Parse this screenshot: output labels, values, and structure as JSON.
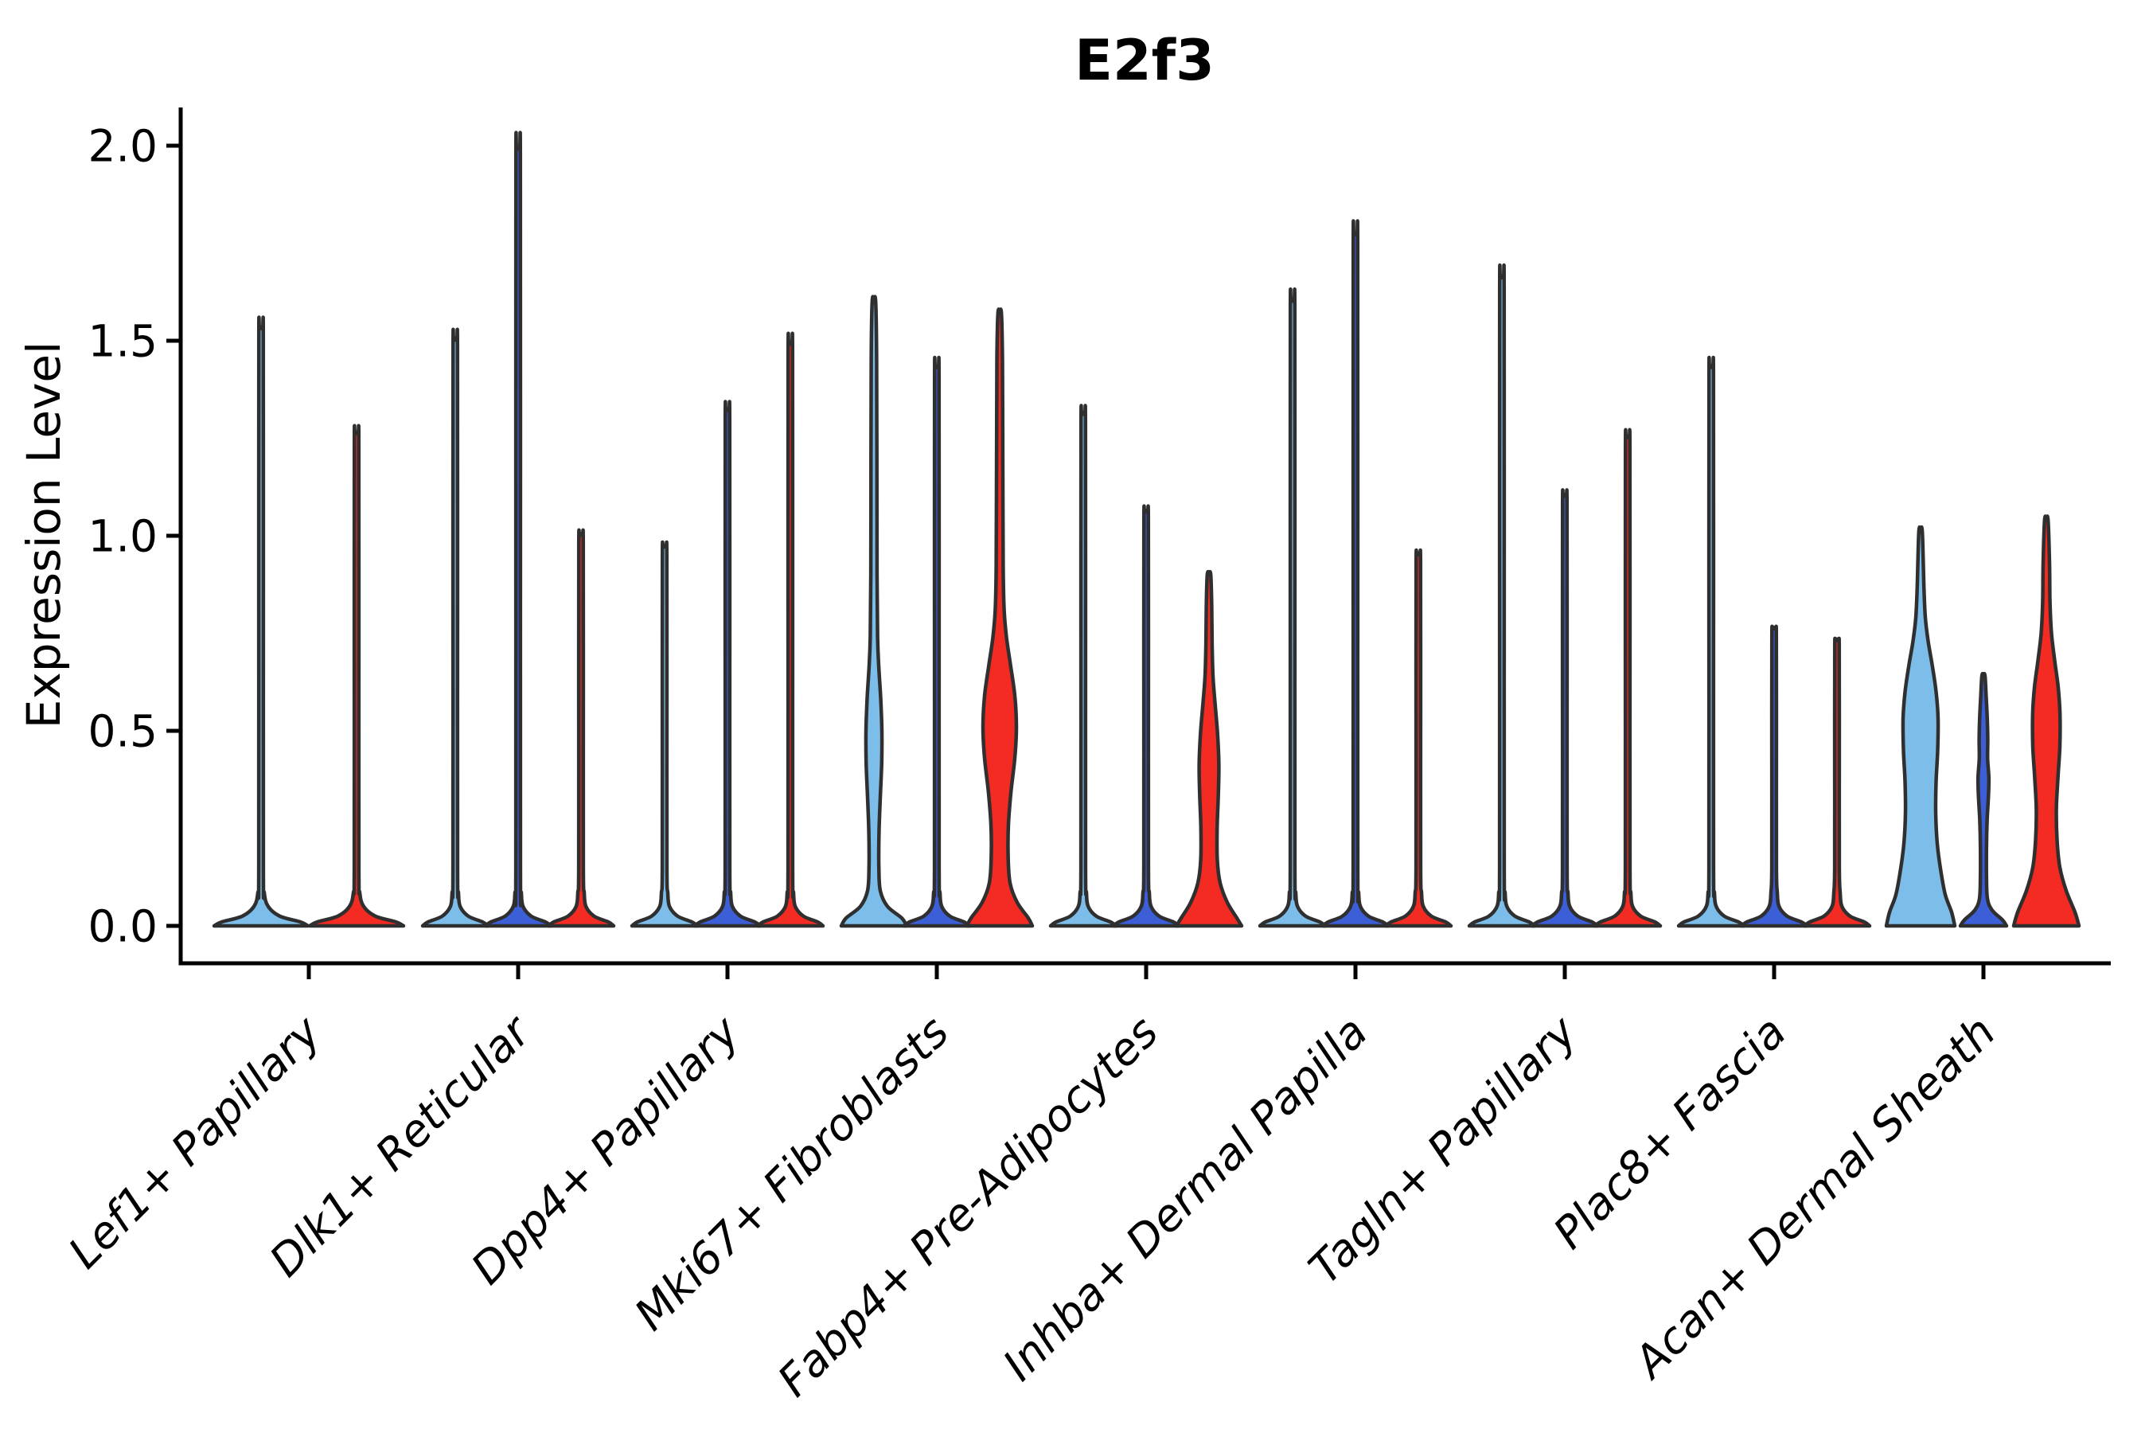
{
  "chart_data": {
    "type": "violin",
    "title": "E2f3",
    "ylabel": "Expression Level",
    "xlabel": "",
    "ylim": [
      0,
      2.05
    ],
    "grid": false,
    "legend_position": "none",
    "yticks": [
      {
        "value": 0.0,
        "label": "0.0"
      },
      {
        "value": 0.5,
        "label": "0.5"
      },
      {
        "value": 1.0,
        "label": "1.0"
      },
      {
        "value": 1.5,
        "label": "1.5"
      },
      {
        "value": 2.0,
        "label": "2.0"
      }
    ],
    "colors": {
      "lightblue": "#7CBEE9",
      "darkblue": "#3C5ED6",
      "red": "#F32B23",
      "outline": "#2F2F2F",
      "axis": "#000000"
    },
    "categories": [
      "Lef1+ Papillary",
      "Dlk1+ Reticular",
      "Dpp4+ Papillary",
      "Mki67+ Fibroblasts",
      "Fabp4+ Pre-Adipocytes",
      "Inhba+ Dermal Papilla",
      "Tagln+ Papillary",
      "Plac8+ Fascia",
      "Acan+ Dermal Sheath"
    ],
    "groups": [
      {
        "category": "Lef1+ Papillary",
        "violins": [
          {
            "split": "lightblue",
            "max": 1.53,
            "shape": "spike"
          },
          {
            "split": "red",
            "max": 1.26,
            "shape": "spike"
          }
        ]
      },
      {
        "category": "Dlk1+ Reticular",
        "violins": [
          {
            "split": "lightblue",
            "max": 1.5,
            "shape": "spike"
          },
          {
            "split": "darkblue",
            "max": 1.99,
            "shape": "spike"
          },
          {
            "split": "red",
            "max": 1.0,
            "shape": "spike"
          }
        ]
      },
      {
        "category": "Dpp4+ Papillary",
        "violins": [
          {
            "split": "lightblue",
            "max": 0.97,
            "shape": "spike"
          },
          {
            "split": "darkblue",
            "max": 1.32,
            "shape": "spike"
          },
          {
            "split": "red",
            "max": 1.49,
            "shape": "spike"
          }
        ]
      },
      {
        "category": "Mki67+ Fibroblasts",
        "violins": [
          {
            "split": "lightblue",
            "max": 1.6,
            "shape": "bulge",
            "profile": [
              [
                0,
                41
              ],
              [
                0.02,
                35
              ],
              [
                0.05,
                17
              ],
              [
                0.09,
                8
              ],
              [
                0.15,
                6.2
              ],
              [
                0.24,
                6.4
              ],
              [
                0.33,
                8
              ],
              [
                0.42,
                9.8
              ],
              [
                0.5,
                10
              ],
              [
                0.58,
                8.6
              ],
              [
                0.66,
                6.2
              ],
              [
                0.74,
                4.6
              ],
              [
                0.9,
                3.9
              ],
              [
                1.2,
                3.7
              ],
              [
                1.45,
                3.4
              ],
              [
                1.6,
                2.2
              ]
            ]
          },
          {
            "split": "darkblue",
            "max": 1.43,
            "shape": "spike"
          },
          {
            "split": "red",
            "max": 1.57,
            "shape": "bulge",
            "profile": [
              [
                0,
                41
              ],
              [
                0.02,
                36
              ],
              [
                0.06,
                22
              ],
              [
                0.11,
                13
              ],
              [
                0.18,
                10.6
              ],
              [
                0.26,
                11
              ],
              [
                0.34,
                14
              ],
              [
                0.43,
                19
              ],
              [
                0.51,
                21
              ],
              [
                0.59,
                19
              ],
              [
                0.67,
                13.5
              ],
              [
                0.74,
                8.5
              ],
              [
                0.81,
                5.6
              ],
              [
                0.92,
                4.4
              ],
              [
                1.2,
                3.9
              ],
              [
                1.45,
                3.5
              ],
              [
                1.57,
                2.2
              ]
            ]
          }
        ]
      },
      {
        "category": "Fabp4+ Pre-Adipocytes",
        "violins": [
          {
            "split": "lightblue",
            "max": 1.31,
            "shape": "spike"
          },
          {
            "split": "darkblue",
            "max": 1.06,
            "shape": "spike"
          },
          {
            "split": "red",
            "max": 0.9,
            "shape": "bulge",
            "profile": [
              [
                0,
                41
              ],
              [
                0.02,
                35
              ],
              [
                0.06,
                23
              ],
              [
                0.11,
                14
              ],
              [
                0.17,
                10.4
              ],
              [
                0.25,
                10.2
              ],
              [
                0.33,
                11.6
              ],
              [
                0.41,
                12.4
              ],
              [
                0.49,
                10.8
              ],
              [
                0.57,
                7.6
              ],
              [
                0.64,
                5
              ],
              [
                0.72,
                3.9
              ],
              [
                0.82,
                3.4
              ],
              [
                0.9,
                2.2
              ]
            ]
          }
        ]
      },
      {
        "category": "Inhba+ Dermal Papilla",
        "violins": [
          {
            "split": "lightblue",
            "max": 1.6,
            "shape": "spike"
          },
          {
            "split": "darkblue",
            "max": 1.77,
            "shape": "spike"
          },
          {
            "split": "red",
            "max": 0.95,
            "shape": "spike"
          }
        ]
      },
      {
        "category": "Tagln+ Papillary",
        "violins": [
          {
            "split": "lightblue",
            "max": 1.66,
            "shape": "spike"
          },
          {
            "split": "darkblue",
            "max": 1.1,
            "shape": "spike"
          },
          {
            "split": "red",
            "max": 1.25,
            "shape": "spike"
          }
        ]
      },
      {
        "category": "Plac8+ Fascia",
        "violins": [
          {
            "split": "lightblue",
            "max": 1.43,
            "shape": "spike"
          },
          {
            "split": "darkblue",
            "max": 0.76,
            "shape": "spike"
          },
          {
            "split": "red",
            "max": 0.73,
            "shape": "spike"
          }
        ]
      },
      {
        "category": "Acan+ Dermal Sheath",
        "violins": [
          {
            "split": "lightblue",
            "max": 1.01,
            "shape": "bulge",
            "profile": [
              [
                0,
                43
              ],
              [
                0.035,
                39
              ],
              [
                0.08,
                31
              ],
              [
                0.14,
                25.5
              ],
              [
                0.21,
                21
              ],
              [
                0.29,
                19
              ],
              [
                0.37,
                19.5
              ],
              [
                0.45,
                21.5
              ],
              [
                0.53,
                22
              ],
              [
                0.6,
                19.5
              ],
              [
                0.67,
                14.5
              ],
              [
                0.73,
                9.5
              ],
              [
                0.79,
                6
              ],
              [
                0.87,
                4.2
              ],
              [
                1.01,
                2.2
              ]
            ]
          },
          {
            "split": "darkblue",
            "max": 0.64,
            "shape": "bulge",
            "profile": [
              [
                0,
                29
              ],
              [
                0.015,
                24
              ],
              [
                0.04,
                11
              ],
              [
                0.07,
                5
              ],
              [
                0.13,
                3.8
              ],
              [
                0.2,
                3.8
              ],
              [
                0.27,
                4.6
              ],
              [
                0.33,
                6.2
              ],
              [
                0.38,
                6.8
              ],
              [
                0.43,
                5.2
              ],
              [
                0.48,
                5.4
              ],
              [
                0.53,
                4.8
              ],
              [
                0.58,
                3.6
              ],
              [
                0.64,
                2.0
              ]
            ]
          },
          {
            "split": "red",
            "max": 1.04,
            "shape": "bulge",
            "profile": [
              [
                0,
                41
              ],
              [
                0.035,
                36
              ],
              [
                0.09,
                25
              ],
              [
                0.15,
                17
              ],
              [
                0.22,
                13.5
              ],
              [
                0.3,
                12.6
              ],
              [
                0.38,
                14.6
              ],
              [
                0.46,
                17
              ],
              [
                0.54,
                17.2
              ],
              [
                0.61,
                15
              ],
              [
                0.68,
                10.5
              ],
              [
                0.75,
                6.5
              ],
              [
                0.83,
                4.6
              ],
              [
                0.93,
                4
              ],
              [
                1.04,
                2.2
              ]
            ]
          }
        ]
      }
    ]
  }
}
